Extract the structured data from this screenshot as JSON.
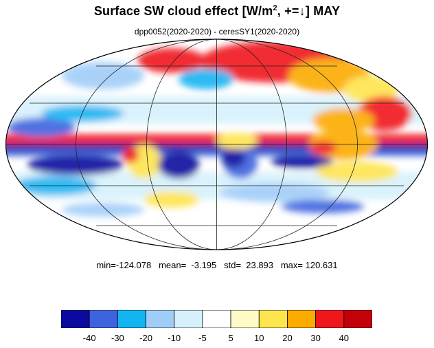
{
  "title": {
    "main": "Surface SW cloud effect [W/m",
    "sup": "2",
    "rest": ", +=↓]  MAY"
  },
  "subtitle": "dpp0052(2020-2020) - ceresSY1(2020-2020)",
  "stats": "min=-124.078   mean=  -3.195   std=  23.893   max= 120.631",
  "colorbar": {
    "colors": [
      "#0a0aa0",
      "#3e63df",
      "#12b4f2",
      "#a0cdf8",
      "#d6f1fb",
      "#ffffff",
      "#fefbc6",
      "#fee44d",
      "#fcab00",
      "#f0171b",
      "#c40008"
    ],
    "labels": [
      "-40",
      "-30",
      "-20",
      "-10",
      "-5",
      "5",
      "10",
      "20",
      "30",
      "40"
    ]
  }
}
